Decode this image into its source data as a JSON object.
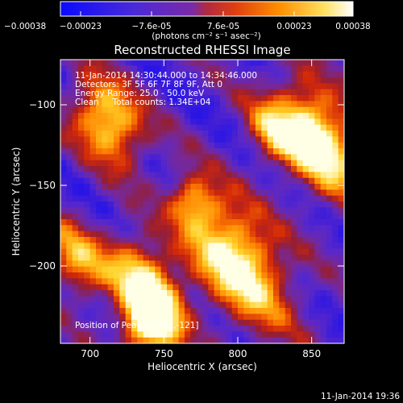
{
  "chart_data": {
    "type": "heatmap",
    "title": "Reconstructed RHESSI Image",
    "xlabel": "Heliocentric X (arcsec)",
    "ylabel": "Heliocentric Y (arcsec)",
    "x_ticks": [
      700,
      750,
      800,
      850
    ],
    "y_ticks": [
      -100,
      -150,
      -200
    ],
    "xlim": [
      680,
      872
    ],
    "ylim": [
      -248,
      -72
    ],
    "colorbar": {
      "ticks": [
        "-0.00038",
        "-0.00023",
        "-7.6e-05",
        "7.6e-05",
        "0.00023",
        "0.00038"
      ],
      "range": [
        -0.00038,
        0.00038
      ],
      "unit_label": "(photons cm⁻² s⁻¹ asec⁻²)"
    },
    "annotations": {
      "time_range": "11-Jan-2014 14:30:44.000 to 14:34:46.000",
      "detectors": "Detectors: 3F 5F 6F 7F 8F 9F, Att 0",
      "energy": "Energy Range: 25.0 - 50.0 keV",
      "method": "Clean     Total counts: 1.34E+04",
      "peak": "Position of Peak = [853,-121]"
    },
    "peak": [
      853,
      -121
    ],
    "footer_timestamp": "11-Jan-2014 19:36",
    "grid": false
  }
}
